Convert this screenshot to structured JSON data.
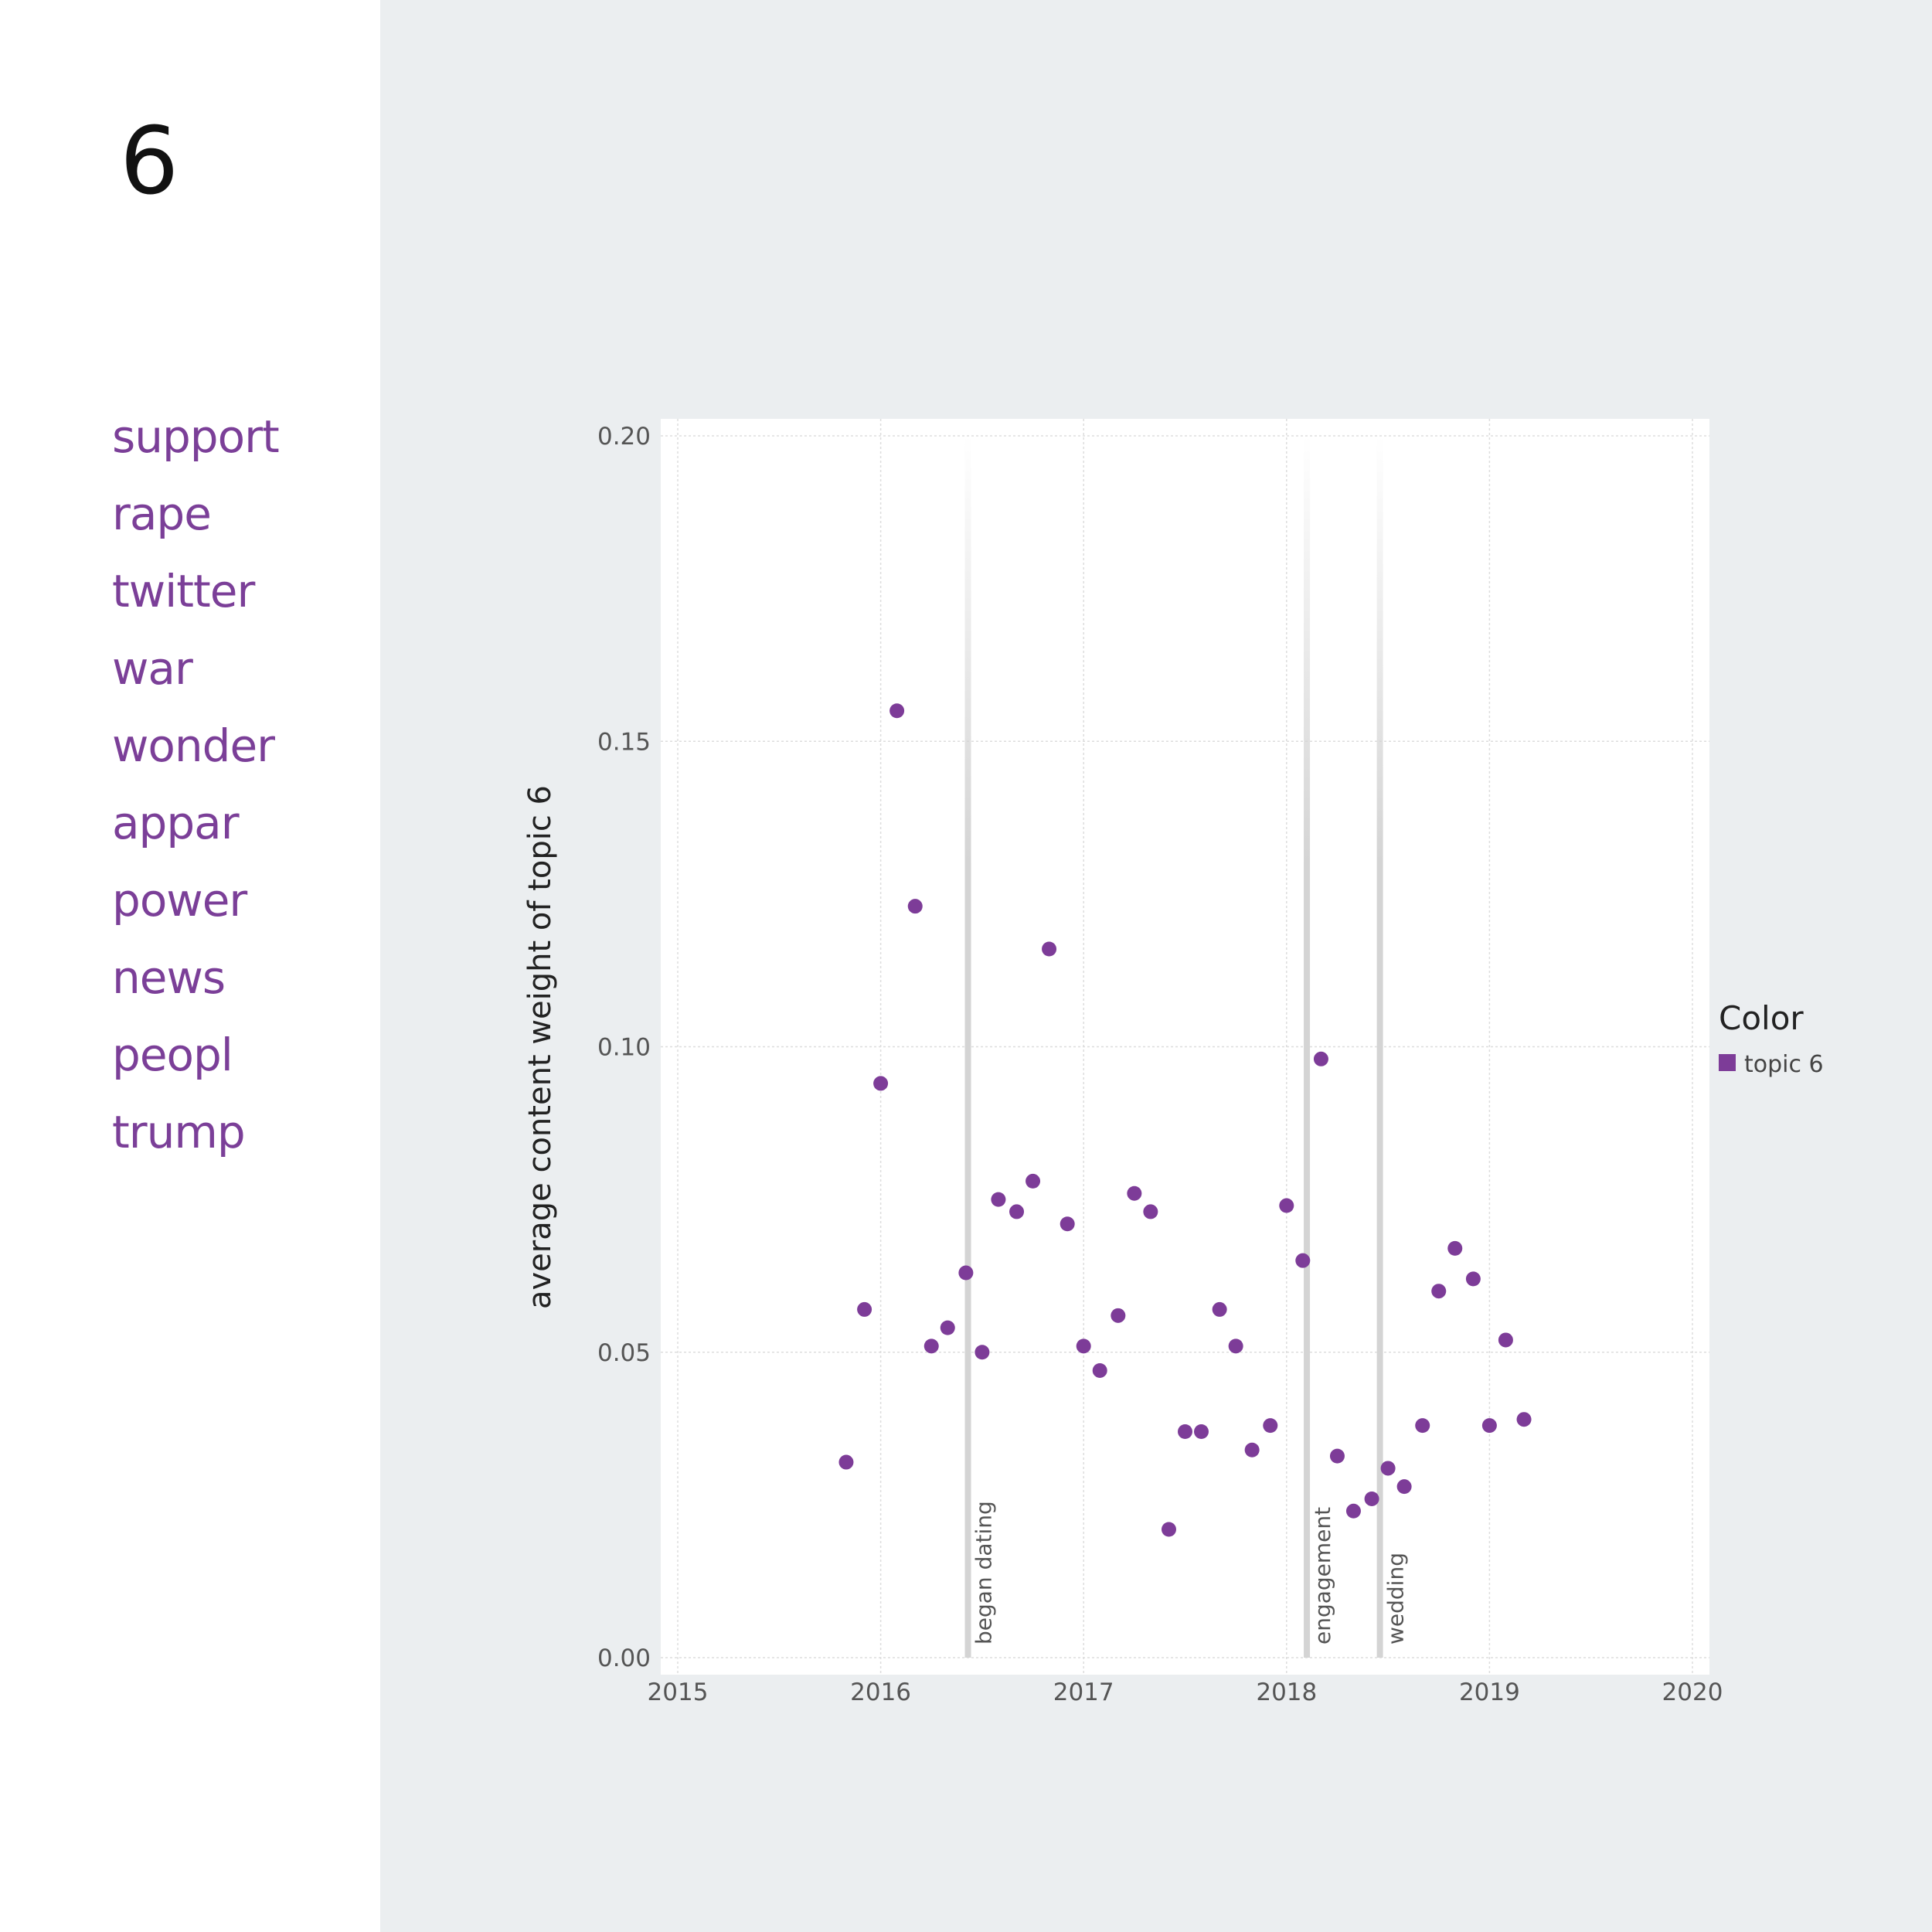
{
  "sidebar": {
    "topic_number": "6",
    "words": [
      "support",
      "rape",
      "twitter",
      "war",
      "wonder",
      "appar",
      "power",
      "news",
      "peopl",
      "trump"
    ]
  },
  "colors": {
    "accent": "#7b3f98",
    "marker": "#7d3c98",
    "annotation_line": "#d4d4d4"
  },
  "chart_data": {
    "type": "scatter",
    "title": "",
    "xlabel": "",
    "ylabel": "average content weight of topic 6",
    "xlim": [
      2015,
      2020
    ],
    "ylim": [
      0,
      0.2
    ],
    "xticks": [
      "2015",
      "2016",
      "2017",
      "2018",
      "2019",
      "2020"
    ],
    "yticks": [
      "0.00",
      "0.05",
      "0.10",
      "0.15",
      "0.20"
    ],
    "grid": true,
    "legend": {
      "title": "Color",
      "position": "right",
      "entries": [
        {
          "label": "topic 6",
          "color": "#7d3c98"
        }
      ]
    },
    "annotations": [
      {
        "x": 2016.43,
        "label": "began dating"
      },
      {
        "x": 2018.1,
        "label": "engagement"
      },
      {
        "x": 2018.46,
        "label": "wedding"
      }
    ],
    "series": [
      {
        "name": "topic 6",
        "color": "#7d3c98",
        "points": [
          [
            2015.83,
            0.032
          ],
          [
            2015.92,
            0.057
          ],
          [
            2016.0,
            0.094
          ],
          [
            2016.08,
            0.155
          ],
          [
            2016.17,
            0.123
          ],
          [
            2016.25,
            0.051
          ],
          [
            2016.33,
            0.054
          ],
          [
            2016.42,
            0.063
          ],
          [
            2016.5,
            0.05
          ],
          [
            2016.58,
            0.075
          ],
          [
            2016.67,
            0.073
          ],
          [
            2016.75,
            0.078
          ],
          [
            2016.83,
            0.116
          ],
          [
            2016.92,
            0.071
          ],
          [
            2017.0,
            0.051
          ],
          [
            2017.08,
            0.047
          ],
          [
            2017.17,
            0.056
          ],
          [
            2017.25,
            0.076
          ],
          [
            2017.33,
            0.073
          ],
          [
            2017.42,
            0.021
          ],
          [
            2017.5,
            0.037
          ],
          [
            2017.58,
            0.037
          ],
          [
            2017.67,
            0.057
          ],
          [
            2017.75,
            0.051
          ],
          [
            2017.83,
            0.034
          ],
          [
            2017.92,
            0.038
          ],
          [
            2018.0,
            0.074
          ],
          [
            2018.08,
            0.065
          ],
          [
            2018.17,
            0.098
          ],
          [
            2018.25,
            0.033
          ],
          [
            2018.33,
            0.024
          ],
          [
            2018.42,
            0.026
          ],
          [
            2018.5,
            0.031
          ],
          [
            2018.58,
            0.028
          ],
          [
            2018.67,
            0.038
          ],
          [
            2018.75,
            0.06
          ],
          [
            2018.83,
            0.067
          ],
          [
            2018.92,
            0.062
          ],
          [
            2019.0,
            0.038
          ],
          [
            2019.08,
            0.052
          ],
          [
            2019.17,
            0.039
          ]
        ]
      }
    ]
  }
}
